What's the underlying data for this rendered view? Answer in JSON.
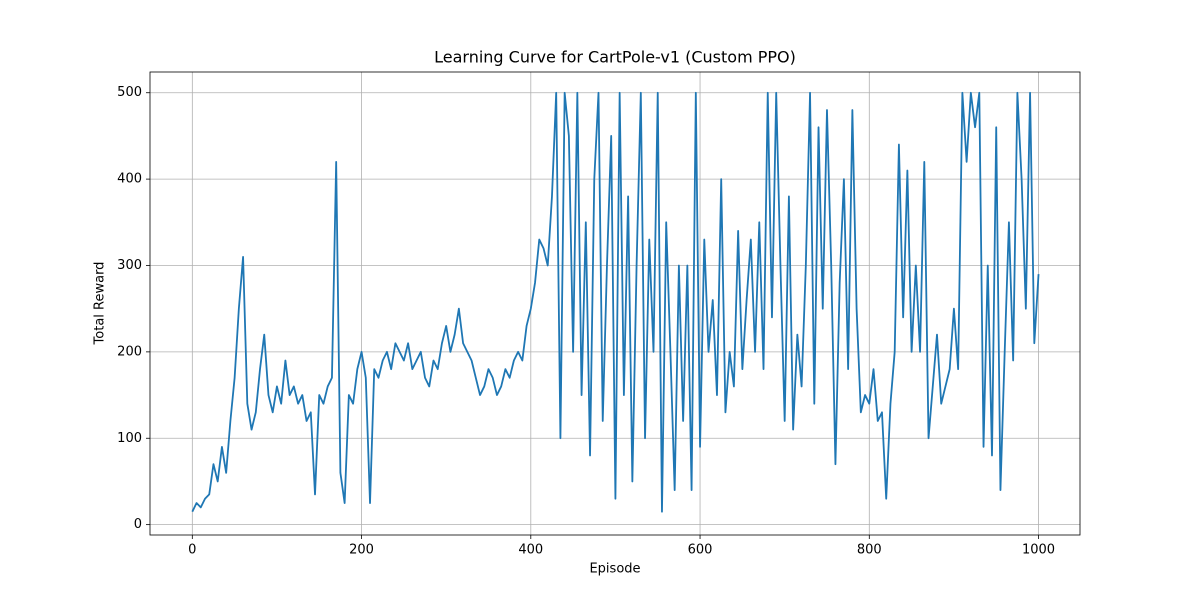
{
  "chart_data": {
    "type": "line",
    "title": "Learning Curve for CartPole-v1 (Custom PPO)",
    "x_label": "Episode",
    "y_label": "Total Reward",
    "xlim": [
      -50,
      1049
    ],
    "ylim": [
      -12,
      524
    ],
    "xticks": [
      0,
      200,
      400,
      600,
      800,
      1000
    ],
    "yticks": [
      0,
      100,
      200,
      300,
      400,
      500
    ],
    "grid": true,
    "x": [
      0,
      5,
      10,
      15,
      20,
      25,
      30,
      35,
      40,
      45,
      50,
      55,
      60,
      65,
      70,
      75,
      80,
      85,
      90,
      95,
      100,
      105,
      110,
      115,
      120,
      125,
      130,
      135,
      140,
      145,
      150,
      155,
      160,
      165,
      170,
      175,
      180,
      185,
      190,
      195,
      200,
      205,
      210,
      215,
      220,
      225,
      230,
      235,
      240,
      245,
      250,
      255,
      260,
      265,
      270,
      275,
      280,
      285,
      290,
      295,
      300,
      305,
      310,
      315,
      320,
      325,
      330,
      335,
      340,
      345,
      350,
      355,
      360,
      365,
      370,
      375,
      380,
      385,
      390,
      395,
      400,
      405,
      410,
      415,
      420,
      425,
      430,
      435,
      440,
      445,
      450,
      455,
      460,
      465,
      470,
      475,
      480,
      485,
      490,
      495,
      500,
      505,
      510,
      515,
      520,
      525,
      530,
      535,
      540,
      545,
      550,
      555,
      560,
      565,
      570,
      575,
      580,
      585,
      590,
      595,
      600,
      605,
      610,
      615,
      620,
      625,
      630,
      635,
      640,
      645,
      650,
      655,
      660,
      665,
      670,
      675,
      680,
      685,
      690,
      695,
      700,
      705,
      710,
      715,
      720,
      725,
      730,
      735,
      740,
      745,
      750,
      755,
      760,
      765,
      770,
      775,
      780,
      785,
      790,
      795,
      800,
      805,
      810,
      815,
      820,
      825,
      830,
      835,
      840,
      845,
      850,
      855,
      860,
      865,
      870,
      875,
      880,
      885,
      890,
      895,
      900,
      905,
      910,
      915,
      920,
      925,
      930,
      935,
      940,
      945,
      950,
      955,
      960,
      965,
      970,
      975,
      980,
      985,
      990,
      995,
      1000
    ],
    "series": [
      {
        "name": "Total Reward",
        "color": "#1f77b4",
        "values": [
          15,
          25,
          20,
          30,
          35,
          70,
          50,
          90,
          60,
          120,
          170,
          250,
          310,
          140,
          110,
          130,
          180,
          220,
          150,
          130,
          160,
          140,
          190,
          150,
          160,
          140,
          150,
          120,
          130,
          35,
          150,
          140,
          160,
          170,
          420,
          60,
          25,
          150,
          140,
          180,
          200,
          170,
          25,
          180,
          170,
          190,
          200,
          180,
          210,
          200,
          190,
          210,
          180,
          190,
          200,
          170,
          160,
          190,
          180,
          210,
          230,
          200,
          220,
          250,
          210,
          200,
          190,
          170,
          150,
          160,
          180,
          170,
          150,
          160,
          180,
          170,
          190,
          200,
          190,
          230,
          250,
          280,
          330,
          320,
          300,
          380,
          500,
          100,
          500,
          450,
          200,
          500,
          150,
          350,
          80,
          400,
          500,
          120,
          300,
          450,
          30,
          500,
          150,
          380,
          50,
          300,
          500,
          100,
          330,
          200,
          500,
          15,
          350,
          200,
          40,
          300,
          120,
          300,
          40,
          500,
          90,
          330,
          200,
          260,
          150,
          400,
          130,
          200,
          160,
          340,
          180,
          260,
          330,
          200,
          350,
          180,
          500,
          240,
          500,
          300,
          120,
          380,
          110,
          220,
          160,
          300,
          500,
          140,
          460,
          250,
          480,
          300,
          70,
          280,
          400,
          180,
          480,
          250,
          130,
          150,
          140,
          180,
          120,
          130,
          30,
          140,
          200,
          440,
          240,
          410,
          200,
          300,
          200,
          420,
          100,
          160,
          220,
          140,
          160,
          180,
          250,
          180,
          500,
          420,
          500,
          460,
          500,
          90,
          300,
          80,
          460,
          40,
          200,
          350,
          190,
          500,
          400,
          250,
          500,
          210,
          290
        ]
      }
    ]
  }
}
